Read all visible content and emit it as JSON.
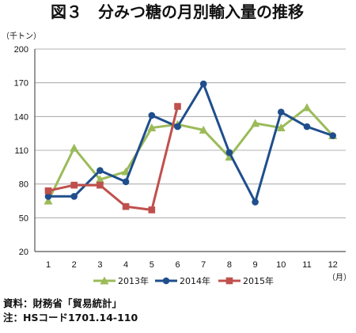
{
  "chart_data": {
    "type": "line",
    "title": "図３　分みつ糖の月別輸入量の推移",
    "ylabel": "（千トン）",
    "xlabel": "（月）",
    "categories": [
      "1",
      "2",
      "3",
      "4",
      "5",
      "6",
      "7",
      "8",
      "9",
      "10",
      "11",
      "12"
    ],
    "yticks": [
      20,
      50,
      80,
      110,
      140,
      170,
      200
    ],
    "ylim": [
      20,
      200
    ],
    "grid": true,
    "legend_position": "bottom",
    "series": [
      {
        "name": "2013年",
        "color": "#9bbb59",
        "marker": "triangle",
        "values": [
          65,
          112,
          84,
          91,
          130,
          133,
          128,
          104,
          134,
          130,
          148,
          123
        ]
      },
      {
        "name": "2014年",
        "color": "#1f4e8c",
        "marker": "circle",
        "values": [
          69,
          69,
          92,
          82,
          141,
          131,
          169,
          108,
          64,
          144,
          131,
          123
        ]
      },
      {
        "name": "2015年",
        "color": "#c0504d",
        "marker": "square",
        "values": [
          74,
          79,
          79,
          60,
          57,
          149,
          null,
          null,
          null,
          null,
          null,
          null
        ]
      }
    ]
  },
  "footnotes": {
    "source": "資料：財務省「貿易統計」",
    "note": "注：HSコード1701.14-110"
  }
}
